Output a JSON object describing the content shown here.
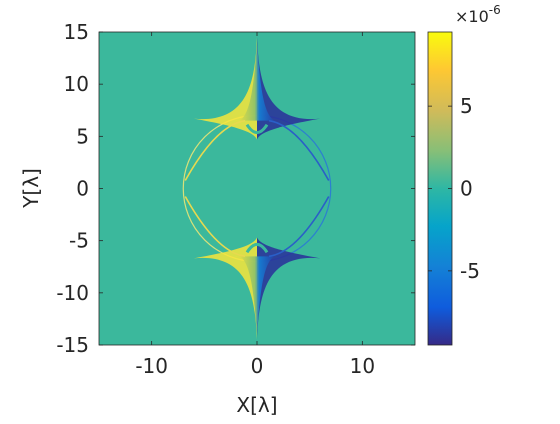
{
  "chart_data": {
    "type": "heatmap",
    "title": "",
    "xlabel": "X[λ]",
    "ylabel": "Y[λ]",
    "xlim": [
      -15,
      15
    ],
    "ylim": [
      -15,
      15
    ],
    "xticks": [
      -10,
      0,
      10
    ],
    "yticks": [
      -15,
      -10,
      -5,
      0,
      5,
      10,
      15
    ],
    "grid": false,
    "background_value": 0,
    "colorbar": {
      "location": "right",
      "clim": [
        -9.5e-06,
        9.5e-06
      ],
      "ticks": [
        -5,
        0,
        5
      ],
      "exponent_label": "×10",
      "exponent_value": "-6"
    },
    "colors": {
      "background": "#3bb89c",
      "high": "#f8e53a",
      "low": "#2a2e9a"
    },
    "features": {
      "circle_center": [
        0,
        0
      ],
      "circle_radius": 7,
      "spike_tips_y": [
        14.5,
        -14.5
      ],
      "cusp_y": [
        4.7,
        -4.7
      ],
      "note_values": "|field| peaks near +9e-6 on the left sides of the spikes and -9e-6 on the right sides"
    }
  }
}
